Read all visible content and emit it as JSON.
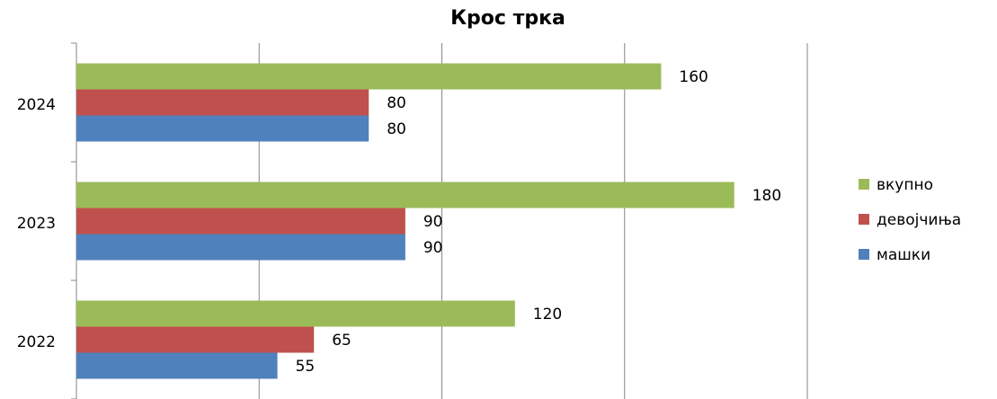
{
  "chart_data": {
    "type": "bar",
    "orientation": "horizontal",
    "title": "Крос трка",
    "categories": [
      "2022",
      "2023",
      "2024"
    ],
    "series": [
      {
        "name": "машки",
        "color": "#4f81bd",
        "values": [
          55,
          90,
          80
        ]
      },
      {
        "name": "девојчиња",
        "color": "#c0504d",
        "values": [
          65,
          90,
          80
        ]
      },
      {
        "name": "вкупно",
        "color": "#9bbb59",
        "values": [
          120,
          180,
          160
        ]
      }
    ],
    "xlim": [
      0,
      200
    ],
    "xticks": [
      0,
      50,
      100,
      150,
      200
    ],
    "grid": true,
    "legend": "right"
  }
}
